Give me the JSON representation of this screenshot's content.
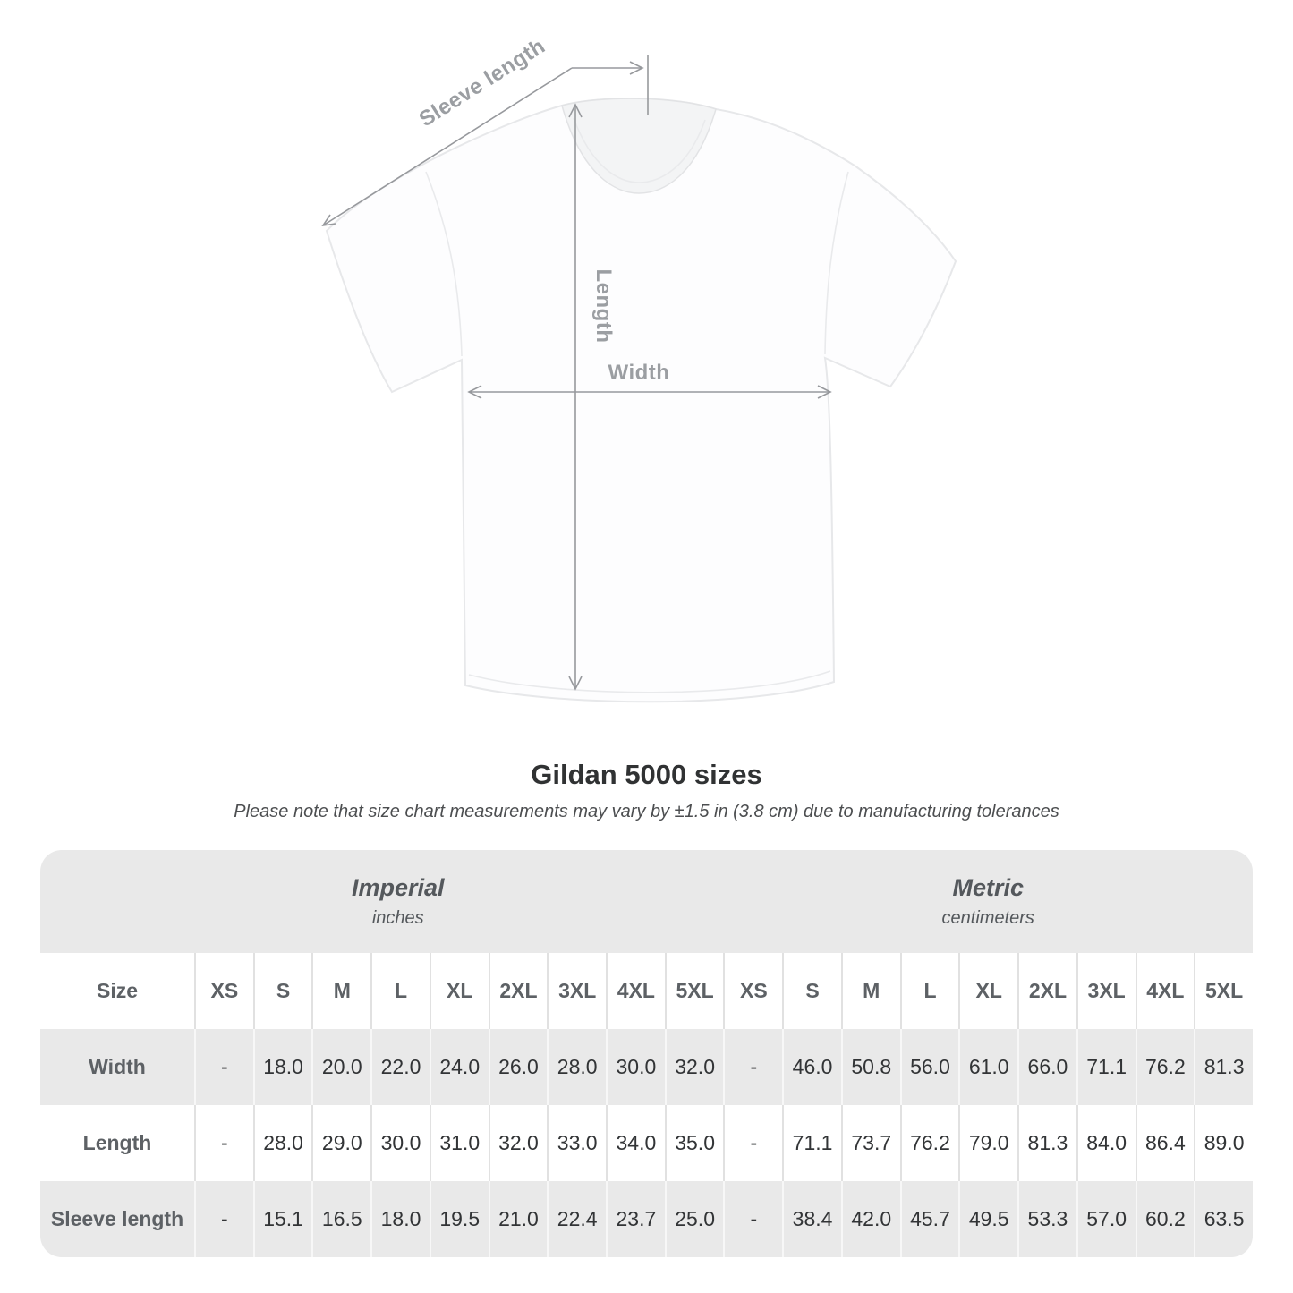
{
  "title": "Gildan 5000 sizes",
  "subtitle": "Please note that size chart measurements may vary by ±1.5 in (3.8 cm) due to manufacturing tolerances",
  "diagram": {
    "labels": {
      "sleeve_length": "Sleeve length",
      "length": "Length",
      "width": "Width"
    },
    "annotation_color": "#97999d"
  },
  "table": {
    "size_header_label": "Size",
    "header_groups": [
      {
        "label": "Imperial",
        "sublabel": "inches"
      },
      {
        "label": "Metric",
        "sublabel": "centimeters"
      }
    ],
    "band_color": "#e9e9e9"
  },
  "chart_data": {
    "type": "table",
    "title": "Gildan 5000 sizes",
    "unit_groups": [
      "Imperial (inches)",
      "Metric (centimeters)"
    ],
    "size_columns": [
      "XS",
      "S",
      "M",
      "L",
      "XL",
      "2XL",
      "3XL",
      "4XL",
      "5XL"
    ],
    "rows": [
      {
        "label": "Width",
        "imperial": [
          "-",
          "18.0",
          "20.0",
          "22.0",
          "24.0",
          "26.0",
          "28.0",
          "30.0",
          "32.0"
        ],
        "metric": [
          "-",
          "46.0",
          "50.8",
          "56.0",
          "61.0",
          "66.0",
          "71.1",
          "76.2",
          "81.3"
        ]
      },
      {
        "label": "Length",
        "imperial": [
          "-",
          "28.0",
          "29.0",
          "30.0",
          "31.0",
          "32.0",
          "33.0",
          "34.0",
          "35.0"
        ],
        "metric": [
          "-",
          "71.1",
          "73.7",
          "76.2",
          "79.0",
          "81.3",
          "84.0",
          "86.4",
          "89.0"
        ]
      },
      {
        "label": "Sleeve length",
        "imperial": [
          "-",
          "15.1",
          "16.5",
          "18.0",
          "19.5",
          "21.0",
          "22.4",
          "23.7",
          "25.0"
        ],
        "metric": [
          "-",
          "38.4",
          "42.0",
          "45.7",
          "49.5",
          "53.3",
          "57.0",
          "60.2",
          "63.5"
        ]
      }
    ]
  }
}
